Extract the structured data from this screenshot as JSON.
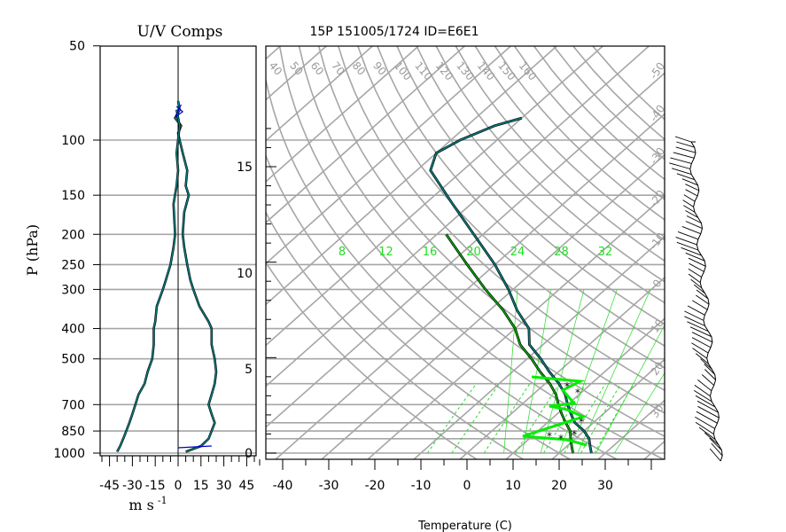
{
  "title": "15P 151005/1724 ID=E6E1",
  "left_panel": {
    "title": "U/V Comps",
    "ylabel": "P (hPa)",
    "xlabel": "m s",
    "xlabel_exp": "-1",
    "pressure_ticks": [
      50,
      100,
      150,
      200,
      250,
      300,
      400,
      500,
      700,
      850,
      1000
    ],
    "x_ticks": [
      -45,
      -30,
      -15,
      0,
      15,
      30,
      45
    ]
  },
  "right_panel": {
    "xlabel": "Temperature (C)",
    "x_ticks": [
      -40,
      -30,
      -20,
      -10,
      0,
      10,
      20,
      30
    ],
    "height_ticks": [
      0,
      5,
      10,
      15
    ],
    "isotherm_labels": [
      -50,
      -40,
      -30,
      -20,
      -10,
      0,
      10,
      20,
      30
    ],
    "dry_adiabat_labels": [
      40,
      50,
      60,
      70,
      80,
      90,
      100,
      110,
      120,
      130,
      140,
      150,
      160
    ],
    "mixing_ratio_labels": [
      8,
      12,
      16,
      20,
      24,
      28,
      32
    ]
  },
  "colors": {
    "grid": "#a6a6a6",
    "temperature": "#008080",
    "dewpoint": "#00aa00",
    "theta_e": "#00ee00",
    "u_component": "#0000cc",
    "v_component": "#008080",
    "mixing_ratio": "#22dd22"
  },
  "chart_data": [
    {
      "type": "line",
      "panel": "left",
      "title": "U/V Comps",
      "ylabel": "P (hPa)",
      "xlabel": "m s -1",
      "y_scale": "log",
      "ylim": [
        1000,
        50
      ],
      "xlim": [
        -50,
        50
      ],
      "grid": true,
      "series": [
        {
          "name": "",
          "points": [
            [
              0,
              75
            ],
            [
              1,
              80
            ],
            [
              -2,
              85
            ],
            [
              2,
              90
            ],
            [
              0,
              95
            ],
            [
              1,
              100
            ],
            [
              3,
              110
            ],
            [
              6,
              125
            ],
            [
              5,
              140
            ],
            [
              7,
              150
            ],
            [
              4,
              170
            ],
            [
              3,
              200
            ],
            [
              4,
              220
            ],
            [
              6,
              250
            ],
            [
              8,
              280
            ],
            [
              10,
              300
            ],
            [
              14,
              340
            ],
            [
              20,
              380
            ],
            [
              22,
              400
            ],
            [
              22,
              450
            ],
            [
              24,
              500
            ],
            [
              25,
              550
            ],
            [
              24,
              600
            ],
            [
              22,
              650
            ],
            [
              20,
              700
            ],
            [
              22,
              750
            ],
            [
              24,
              800
            ],
            [
              22,
              850
            ],
            [
              20,
              900
            ],
            [
              15,
              950
            ],
            [
              5,
              990
            ]
          ]
        },
        {
          "name": "",
          "points": [
            [
              -1,
              80
            ],
            [
              1,
              90
            ],
            [
              0,
              100
            ],
            [
              -1,
              110
            ],
            [
              0,
              125
            ],
            [
              -1,
              140
            ],
            [
              -3,
              160
            ],
            [
              -2,
              200
            ],
            [
              -3,
              220
            ],
            [
              -5,
              250
            ],
            [
              -8,
              280
            ],
            [
              -10,
              300
            ],
            [
              -14,
              340
            ],
            [
              -15,
              380
            ],
            [
              -16,
              400
            ],
            [
              -16,
              450
            ],
            [
              -17,
              500
            ],
            [
              -20,
              550
            ],
            [
              -22,
              600
            ],
            [
              -26,
              650
            ],
            [
              -28,
              700
            ],
            [
              -30,
              750
            ],
            [
              -32,
              800
            ],
            [
              -34,
              850
            ],
            [
              -36,
              900
            ],
            [
              -38,
              950
            ],
            [
              -40,
              990
            ]
          ]
        }
      ]
    },
    {
      "type": "line",
      "panel": "right",
      "title": "15P 151005/1724 ID=E6E1",
      "xlabel": "Temperature (C)",
      "xlim": [
        -45,
        40
      ],
      "ylim": [
        1000,
        50
      ],
      "y_scale": "log",
      "skewed": true,
      "grid": true,
      "series": [
        {
          "name": "",
          "points": [
            [
              27,
              1000
            ],
            [
              25,
              950
            ],
            [
              23,
              900
            ],
            [
              20,
              850
            ],
            [
              16,
              800
            ],
            [
              13,
              750
            ],
            [
              10,
              700
            ],
            [
              7,
              650
            ],
            [
              3,
              600
            ],
            [
              -2,
              550
            ],
            [
              -7,
              500
            ],
            [
              -13,
              450
            ],
            [
              -17,
              400
            ],
            [
              -24,
              350
            ],
            [
              -31,
              300
            ],
            [
              -40,
              250
            ],
            [
              -52,
              200
            ],
            [
              -64,
              160
            ],
            [
              -77,
              125
            ],
            [
              -80,
              110
            ],
            [
              -78,
              100
            ],
            [
              -74,
              90
            ],
            [
              -70,
              85
            ]
          ]
        },
        {
          "name": "",
          "points": [
            [
              23,
              1000
            ],
            [
              21,
              950
            ],
            [
              19,
              900
            ],
            [
              17,
              850
            ],
            [
              14,
              800
            ],
            [
              11,
              750
            ],
            [
              8,
              700
            ],
            [
              5,
              650
            ],
            [
              1,
              600
            ],
            [
              -4,
              550
            ],
            [
              -9,
              500
            ],
            [
              -15,
              450
            ],
            [
              -20,
              400
            ],
            [
              -27,
              350
            ],
            [
              -36,
              300
            ],
            [
              -46,
              250
            ],
            [
              -58,
              200
            ]
          ]
        }
      ]
    }
  ]
}
